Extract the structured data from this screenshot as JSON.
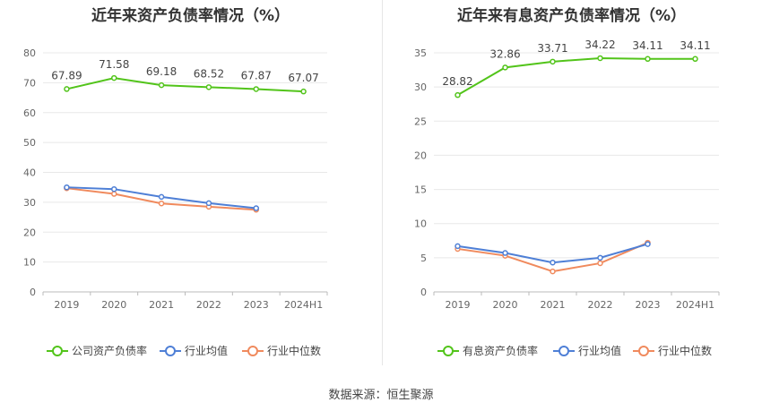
{
  "source_note": "数据来源：恒生聚源",
  "chart_data": [
    {
      "type": "line",
      "title": "近年来资产负债率情况（%）",
      "categories": [
        "2019",
        "2020",
        "2021",
        "2022",
        "2023",
        "2024H1"
      ],
      "ylim": [
        0,
        80
      ],
      "yticks": [
        0,
        10,
        20,
        30,
        40,
        50,
        60,
        70,
        80
      ],
      "grid": true,
      "legend_position": "bottom",
      "series": [
        {
          "name": "公司资产负债率",
          "color": "#52c41a",
          "labels": true,
          "values": [
            67.89,
            71.58,
            69.18,
            68.52,
            67.87,
            67.07
          ]
        },
        {
          "name": "行业均值",
          "color": "#4e7fd6",
          "labels": false,
          "values": [
            35.0,
            34.4,
            31.8,
            29.7,
            28.0,
            null
          ]
        },
        {
          "name": "行业中位数",
          "color": "#f08a5d",
          "labels": false,
          "values": [
            34.7,
            32.8,
            29.6,
            28.5,
            27.5,
            null
          ]
        }
      ]
    },
    {
      "type": "line",
      "title": "近年来有息资产负债率情况（%）",
      "categories": [
        "2019",
        "2020",
        "2021",
        "2022",
        "2023",
        "2024H1"
      ],
      "ylim": [
        0,
        35
      ],
      "yticks": [
        0,
        5,
        10,
        15,
        20,
        25,
        30,
        35
      ],
      "grid": true,
      "legend_position": "bottom",
      "series": [
        {
          "name": "有息资产负债率",
          "color": "#52c41a",
          "labels": true,
          "values": [
            28.82,
            32.86,
            33.71,
            34.22,
            34.11,
            34.11
          ]
        },
        {
          "name": "行业均值",
          "color": "#4e7fd6",
          "labels": false,
          "values": [
            6.7,
            5.7,
            4.3,
            5.0,
            7.0,
            null
          ]
        },
        {
          "name": "行业中位数",
          "color": "#f08a5d",
          "labels": false,
          "values": [
            6.3,
            5.3,
            3.0,
            4.2,
            7.2,
            null
          ]
        }
      ]
    }
  ]
}
